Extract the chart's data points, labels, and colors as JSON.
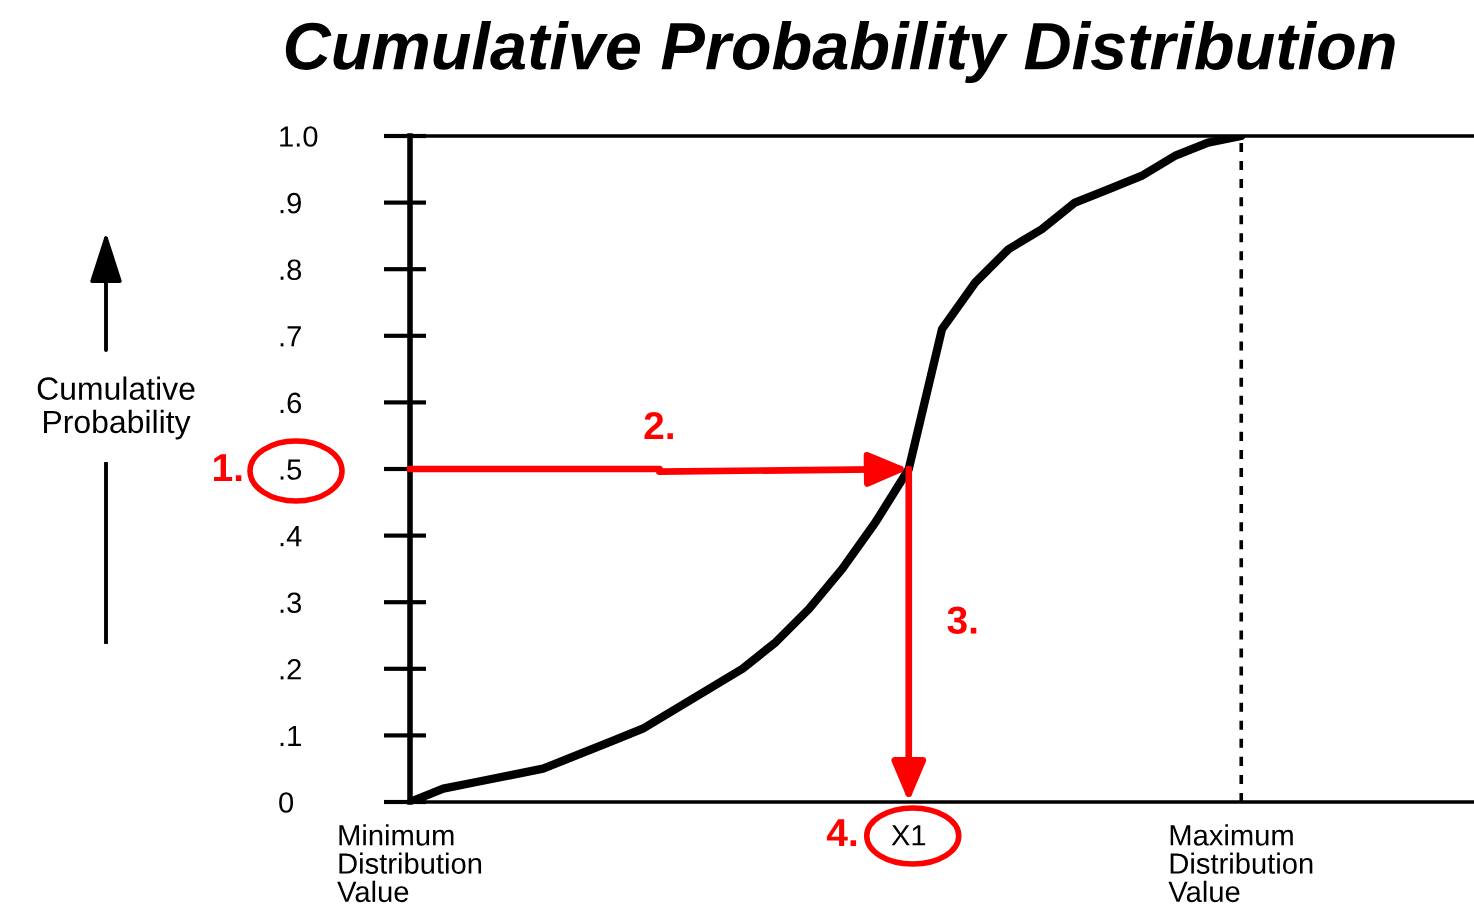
{
  "chart_data": {
    "type": "line",
    "title": "Cumulative Probability Distribution",
    "ylabel": "Cumulative\nProbability",
    "categories": [
      "Minimum\nDistribution\nValue",
      null,
      null,
      null,
      null,
      null,
      null,
      null,
      null,
      null,
      null,
      null,
      null,
      null,
      null,
      "X1",
      null,
      null,
      null,
      null,
      null,
      null,
      null,
      null,
      null,
      "Maximum\nDistribution\nValue",
      null,
      null,
      null,
      null,
      null,
      null,
      null
    ],
    "values": [
      0,
      0.02,
      0.03,
      0.04,
      0.05,
      0.07,
      0.09,
      0.11,
      0.14,
      0.17,
      0.2,
      0.24,
      0.29,
      0.35,
      0.42,
      0.5,
      0.71,
      0.78,
      0.83,
      0.86,
      0.9,
      0.92,
      0.94,
      0.97,
      0.99,
      1.0,
      null,
      null,
      null,
      null,
      null,
      null,
      null
    ],
    "color": "#000000",
    "line_style": "solid",
    "ylim": [
      0,
      1
    ],
    "yticks": [
      0,
      {
        "value": 0.1,
        "label": ".1"
      },
      {
        "value": 0.2,
        "label": ".2"
      },
      {
        "value": 0.3,
        "label": ".3"
      },
      {
        "value": 0.4,
        "label": ".4"
      },
      {
        "value": 0.5,
        "label": ".5"
      },
      {
        "value": 0.6,
        "label": ".6"
      },
      {
        "value": 0.7,
        "label": ".7"
      },
      {
        "value": 0.8,
        "label": ".8"
      },
      {
        "value": 0.9,
        "label": ".9"
      },
      {
        "value": 1,
        "label": "1.0"
      }
    ],
    "ref_lines": [
      {
        "axis": "x",
        "value": "Maximum\nDistribution\nValue",
        "color": "#000000",
        "line_style": "dashed"
      }
    ],
    "annotations": [
      "1.",
      {
        "text": "2.",
        "x": "X1",
        "y": 0.5
      },
      "3.",
      "4."
    ]
  }
}
